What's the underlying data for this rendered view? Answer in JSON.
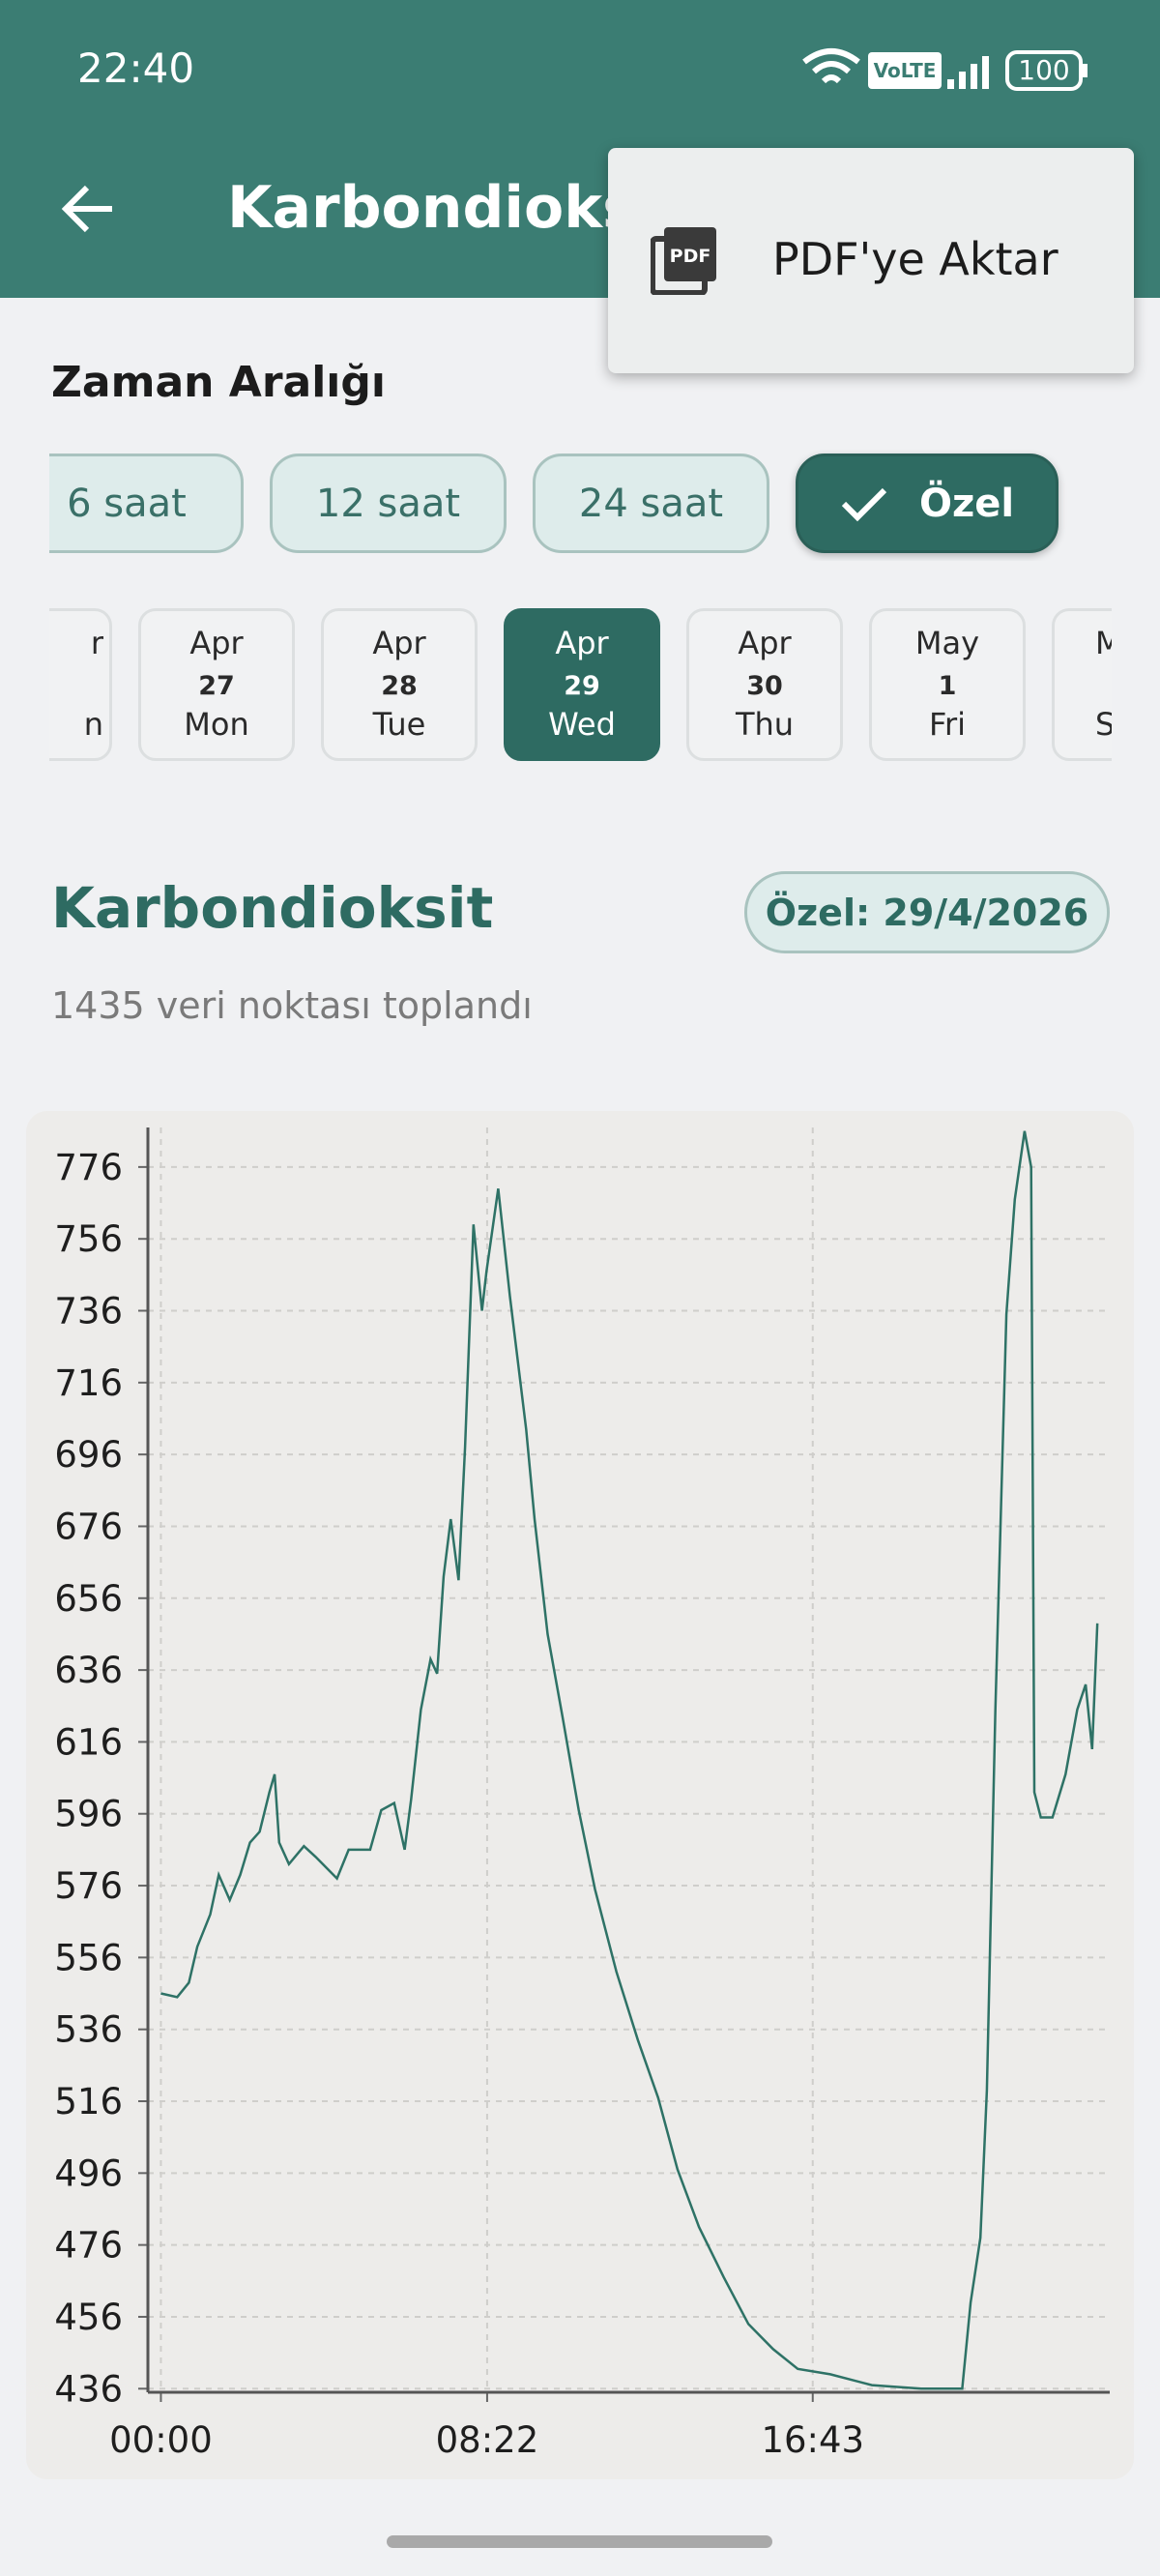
{
  "status_bar": {
    "time": "22:40",
    "volte": "VoLTE",
    "battery": "100"
  },
  "header": {
    "title": "Karbondioksit"
  },
  "menu": {
    "icon_text": "PDF",
    "item": "PDF'ye Aktar"
  },
  "range": {
    "label": "Zaman Aralığı",
    "chips": [
      "6 saat",
      "12 saat",
      "24 saat",
      "Özel"
    ]
  },
  "dates": [
    {
      "month": "r",
      "weekday": "n"
    },
    {
      "month": "Apr",
      "day": "27",
      "weekday": "Mon"
    },
    {
      "month": "Apr",
      "day": "28",
      "weekday": "Tue"
    },
    {
      "month": "Apr",
      "day": "29",
      "weekday": "Wed"
    },
    {
      "month": "Apr",
      "day": "30",
      "weekday": "Thu"
    },
    {
      "month": "May",
      "day": "1",
      "weekday": "Fri"
    },
    {
      "month": "M",
      "weekday": "S"
    }
  ],
  "summary": {
    "title": "Karbondioksit",
    "badge": "Özel: 29/4/2026",
    "subtitle": "1435 veri noktası toplandı"
  },
  "chart_data": {
    "type": "line",
    "x": [
      0,
      25,
      43,
      56,
      76,
      89,
      106,
      122,
      137,
      152,
      167,
      175,
      182,
      197,
      220,
      238,
      271,
      289,
      322,
      339,
      359,
      375,
      385,
      400,
      415,
      425,
      435,
      446,
      458,
      468,
      481,
      494,
      501,
      519,
      537,
      562,
      575,
      595,
      618,
      643,
      668,
      701,
      734,
      765,
      795,
      828,
      866,
      904,
      942,
      980,
      1030,
      1094,
      1170,
      1233,
      1246,
      1261,
      1271,
      1284,
      1301,
      1314,
      1329,
      1339,
      1344,
      1354,
      1372,
      1392,
      1410,
      1423,
      1433,
      1441
    ],
    "series": [
      {
        "color": "#2e7266",
        "values": [
          546,
          545,
          549,
          559,
          568,
          579,
          572,
          579,
          588,
          591,
          602,
          607,
          588,
          582,
          587,
          584,
          578,
          586,
          586,
          597,
          599,
          586,
          600,
          625,
          639,
          635,
          662,
          678,
          661,
          698,
          760,
          736,
          747,
          770,
          740,
          703,
          678,
          646,
          623,
          597,
          575,
          552,
          533,
          517,
          497,
          481,
          467,
          454,
          447,
          441.5,
          440,
          437,
          436,
          436,
          460,
          478,
          519,
          625,
          735,
          767,
          786,
          776,
          602,
          595,
          595,
          607,
          625,
          632,
          614,
          649
        ]
      }
    ],
    "xlim": [
      -20,
      1460
    ],
    "ylim": [
      435,
      787
    ],
    "xticks": [
      {
        "value": 0,
        "label": "00:00"
      },
      {
        "value": 502,
        "label": "08:22"
      },
      {
        "value": 1003,
        "label": "16:43"
      }
    ],
    "yticks": [
      436,
      456,
      476,
      496,
      516,
      536,
      556,
      576,
      596,
      616,
      636,
      656,
      676,
      696,
      716,
      736,
      756,
      776
    ],
    "grid": true
  }
}
